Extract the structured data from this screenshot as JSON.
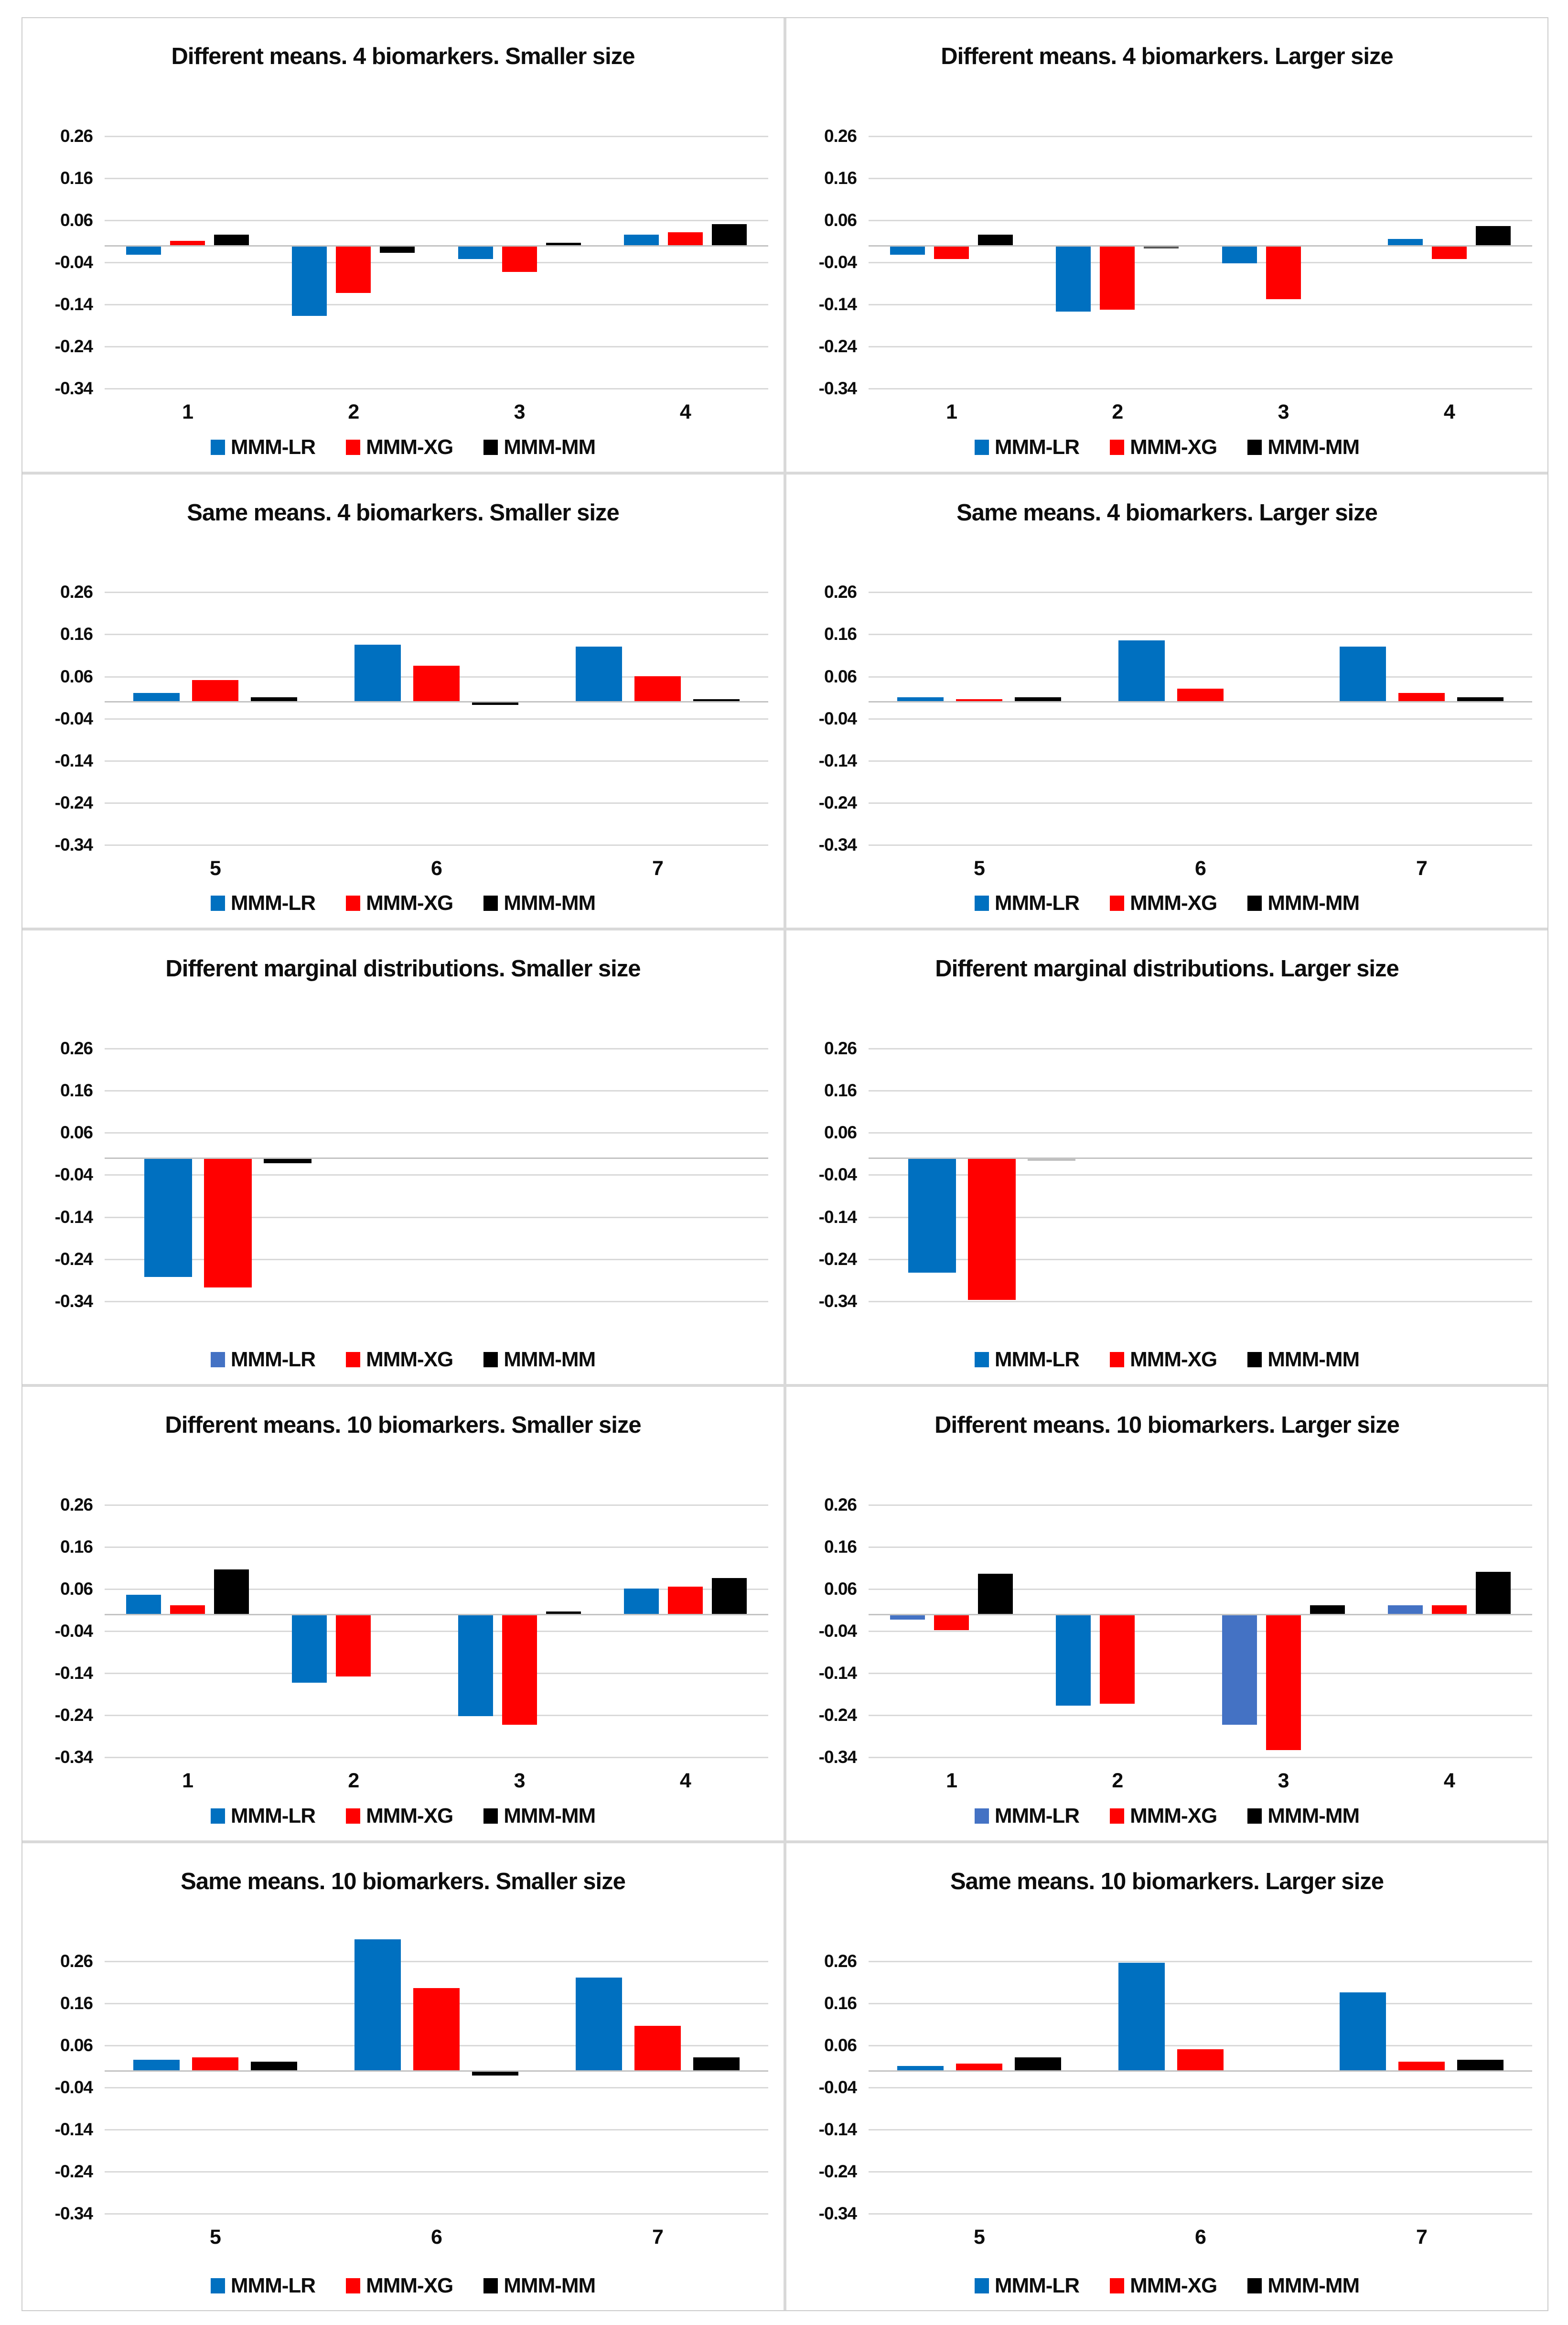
{
  "y_tick_labels": [
    "0.26",
    "0.16",
    "0.06",
    "-0.04",
    "-0.14",
    "-0.24",
    "-0.34"
  ],
  "y_tick_values": [
    0.26,
    0.16,
    0.06,
    -0.04,
    -0.14,
    -0.24,
    -0.34
  ],
  "legend_labels": [
    "MMM-LR",
    "MMM-XG",
    "MMM-MM"
  ],
  "colors": {
    "lr_strong": "#0070C0",
    "lr_light": "#4472C4",
    "xg_red": "#FF0000",
    "mm_black": "#000000",
    "gridline": "#D9D9D9",
    "baseline": "#C3C3C3",
    "divider": "#D9D9D9"
  },
  "chart_data": [
    {
      "type": "bar",
      "title": "Different means. 4 biomarkers. Smaller size",
      "categories": [
        "1",
        "2",
        "3",
        "4"
      ],
      "ylim": [
        -0.34,
        0.26
      ],
      "legend_colors": [
        "#0070C0",
        "#FF0000",
        "#000000"
      ],
      "series": [
        {
          "name": "MMM-LR",
          "values": [
            -0.02,
            -0.165,
            -0.03,
            0.025
          ]
        },
        {
          "name": "MMM-XG",
          "values": [
            0.01,
            -0.11,
            -0.06,
            0.03
          ]
        },
        {
          "name": "MMM-MM",
          "values": [
            0.025,
            -0.015,
            0.005,
            0.05
          ]
        }
      ]
    },
    {
      "type": "bar",
      "title": "Different means. 4 biomarkers. Larger size",
      "categories": [
        "1",
        "2",
        "3",
        "4"
      ],
      "ylim": [
        -0.34,
        0.26
      ],
      "legend_colors": [
        "#0070C0",
        "#FF0000",
        "#000000"
      ],
      "series": [
        {
          "name": "MMM-LR",
          "values": [
            -0.02,
            -0.155,
            -0.04,
            0.015
          ]
        },
        {
          "name": "MMM-XG",
          "values": [
            -0.03,
            -0.15,
            -0.125,
            -0.03
          ]
        },
        {
          "name": "MMM-MM",
          "values": [
            0.025,
            -0.005,
            0,
            0.045
          ],
          "bar_colors": [
            null,
            "#595959",
            null,
            null
          ]
        }
      ]
    },
    {
      "type": "bar",
      "title": "Same means. 4 biomarkers. Smaller size",
      "categories": [
        "5",
        "6",
        "7"
      ],
      "ylim": [
        -0.34,
        0.26
      ],
      "legend_colors": [
        "#0070C0",
        "#FF0000",
        "#000000"
      ],
      "series": [
        {
          "name": "MMM-LR",
          "values": [
            0.02,
            0.135,
            0.13
          ]
        },
        {
          "name": "MMM-XG",
          "values": [
            0.05,
            0.085,
            0.06
          ]
        },
        {
          "name": "MMM-MM",
          "values": [
            0.01,
            -0.005,
            0.005
          ]
        }
      ]
    },
    {
      "type": "bar",
      "title": "Same means. 4 biomarkers. Larger size",
      "categories": [
        "5",
        "6",
        "7"
      ],
      "ylim": [
        -0.34,
        0.26
      ],
      "legend_colors": [
        "#0070C0",
        "#FF0000",
        "#000000"
      ],
      "series": [
        {
          "name": "MMM-LR",
          "values": [
            0.01,
            0.145,
            0.13
          ]
        },
        {
          "name": "MMM-XG",
          "values": [
            0.005,
            0.03,
            0.02
          ]
        },
        {
          "name": "MMM-MM",
          "values": [
            0.01,
            0,
            0.01
          ]
        }
      ]
    },
    {
      "type": "bar",
      "title": "Different marginal distributions. Smaller size",
      "categories": [
        ""
      ],
      "single_group_left": true,
      "ylim": [
        -0.34,
        0.26
      ],
      "legend_colors": [
        "#4472C4",
        "#FF0000",
        "#000000"
      ],
      "series": [
        {
          "name": "MMM-LR",
          "values": [
            -0.28
          ],
          "bar_colors": [
            "#0070C0"
          ]
        },
        {
          "name": "MMM-XG",
          "values": [
            -0.305
          ]
        },
        {
          "name": "MMM-MM",
          "values": [
            -0.01
          ]
        }
      ]
    },
    {
      "type": "bar",
      "title": "Different marginal distributions. Larger size",
      "categories": [
        ""
      ],
      "single_group_left": true,
      "ylim": [
        -0.34,
        0.26
      ],
      "legend_colors": [
        "#0070C0",
        "#FF0000",
        "#000000"
      ],
      "series": [
        {
          "name": "MMM-LR",
          "values": [
            -0.27
          ]
        },
        {
          "name": "MMM-XG",
          "values": [
            -0.335
          ]
        },
        {
          "name": "MMM-MM",
          "values": [
            -0.003
          ],
          "bar_colors": [
            "#BFBFBF"
          ]
        }
      ]
    },
    {
      "type": "bar",
      "title": "Different means. 10 biomarkers. Smaller size",
      "categories": [
        "1",
        "2",
        "3",
        "4"
      ],
      "ylim": [
        -0.34,
        0.26
      ],
      "legend_colors": [
        "#0070C0",
        "#FF0000",
        "#000000"
      ],
      "series": [
        {
          "name": "MMM-LR",
          "values": [
            0.045,
            -0.16,
            -0.24,
            0.06
          ]
        },
        {
          "name": "MMM-XG",
          "values": [
            0.02,
            -0.145,
            -0.26,
            0.065
          ]
        },
        {
          "name": "MMM-MM",
          "values": [
            0.105,
            0,
            0.005,
            0.085
          ]
        }
      ]
    },
    {
      "type": "bar",
      "title": "Different means. 10 biomarkers. Larger size",
      "categories": [
        "1",
        "2",
        "3",
        "4"
      ],
      "ylim": [
        -0.34,
        0.26
      ],
      "legend_colors": [
        "#4472C4",
        "#FF0000",
        "#000000"
      ],
      "series": [
        {
          "name": "MMM-LR",
          "values": [
            -0.01,
            -0.215,
            -0.26,
            0.02
          ],
          "bar_colors": [
            "#4472C4",
            "#0070C0",
            "#4472C4",
            "#4472C4"
          ]
        },
        {
          "name": "MMM-XG",
          "values": [
            -0.035,
            -0.21,
            -0.32,
            0.02
          ]
        },
        {
          "name": "MMM-MM",
          "values": [
            0.095,
            0,
            0.02,
            0.1
          ]
        }
      ]
    },
    {
      "type": "bar",
      "title": "Same means. 10 biomarkers. Smaller size",
      "categories": [
        "5",
        "6",
        "7"
      ],
      "ylim": [
        -0.34,
        0.26
      ],
      "legend_colors": [
        "#0070C0",
        "#FF0000",
        "#000000"
      ],
      "series": [
        {
          "name": "MMM-LR",
          "values": [
            0.025,
            0.31,
            0.22
          ]
        },
        {
          "name": "MMM-XG",
          "values": [
            0.03,
            0.195,
            0.105
          ]
        },
        {
          "name": "MMM-MM",
          "values": [
            0.02,
            -0.01,
            0.03
          ]
        }
      ]
    },
    {
      "type": "bar",
      "title": "Same means. 10 biomarkers. Larger size",
      "categories": [
        "5",
        "6",
        "7"
      ],
      "ylim": [
        -0.34,
        0.26
      ],
      "legend_colors": [
        "#0070C0",
        "#FF0000",
        "#000000"
      ],
      "series": [
        {
          "name": "MMM-LR",
          "values": [
            0.01,
            0.255,
            0.185
          ]
        },
        {
          "name": "MMM-XG",
          "values": [
            0.015,
            0.05,
            0.02
          ]
        },
        {
          "name": "MMM-MM",
          "values": [
            0.03,
            0,
            0.025
          ]
        }
      ]
    }
  ]
}
